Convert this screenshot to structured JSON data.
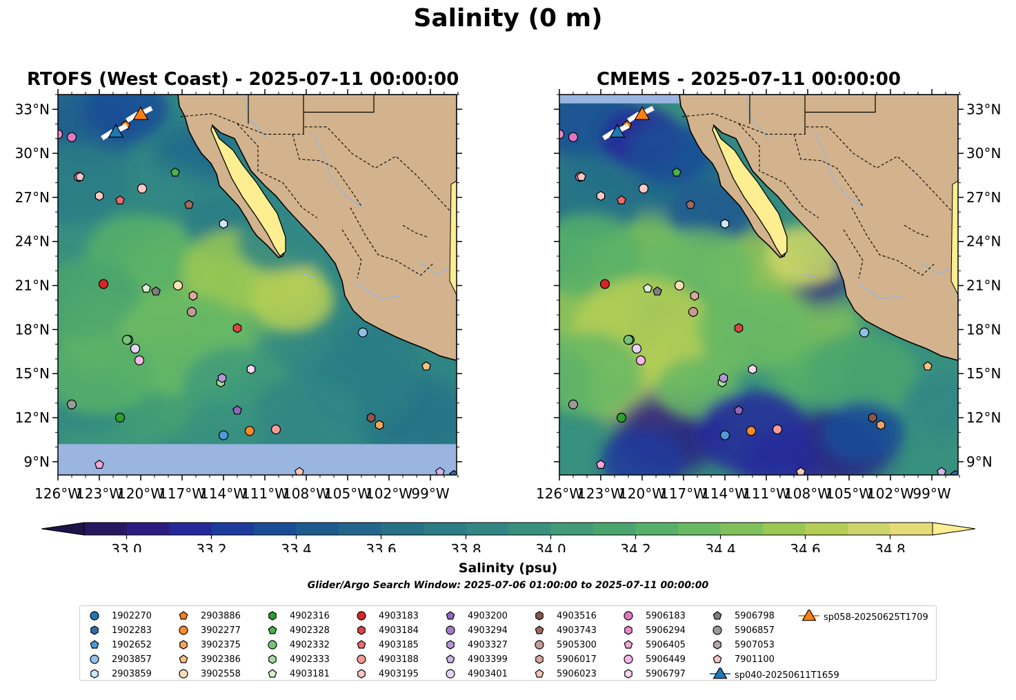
{
  "figure_title": "Salinity (0 m)",
  "chart_data": [
    {
      "type": "heatmap",
      "title": "RTOFS (West Coast) - 2025-07-11 00:00:00",
      "variable": "Salinity (psu)",
      "extent": {
        "lon": [
          -126,
          -97
        ],
        "lat": [
          8,
          34
        ]
      },
      "x_ticks": [
        "126°W",
        "123°W",
        "120°W",
        "117°W",
        "114°W",
        "111°W",
        "108°W",
        "105°W",
        "102°W",
        "99°W"
      ],
      "y_ticks": [
        "9°N",
        "12°N",
        "15°N",
        "18°N",
        "21°N",
        "24°N",
        "27°N",
        "30°N",
        "33°N"
      ],
      "y_axis_side": "left",
      "nodata_region": "south of ~10°N shown as missing (light blue)"
    },
    {
      "type": "heatmap",
      "title": "CMEMS - 2025-07-11 00:00:00",
      "variable": "Salinity (psu)",
      "extent": {
        "lon": [
          -126,
          -97
        ],
        "lat": [
          8,
          34
        ]
      },
      "x_ticks": [
        "126°W",
        "123°W",
        "120°W",
        "117°W",
        "114°W",
        "111°W",
        "108°W",
        "105°W",
        "102°W",
        "99°W"
      ],
      "y_ticks": [
        "9°N",
        "12°N",
        "15°N",
        "18°N",
        "21°N",
        "24°N",
        "27°N",
        "30°N",
        "33°N"
      ],
      "y_axis_side": "right"
    }
  ],
  "colorbar": {
    "label": "Salinity (psu)",
    "min": 32.9,
    "max": 34.9,
    "step": 0.1,
    "ticks": [
      "33.0",
      "33.2",
      "33.4",
      "33.6",
      "33.8",
      "34.0",
      "34.2",
      "34.4",
      "34.6",
      "34.8"
    ],
    "extend": "both",
    "colors": [
      "#27175f",
      "#2c1c82",
      "#26289a",
      "#1d3b9c",
      "#1a4d96",
      "#1d5b8f",
      "#22678b",
      "#277187",
      "#2c7c85",
      "#318784",
      "#38907f",
      "#409b79",
      "#4aa56f",
      "#57b069",
      "#68b964",
      "#80c15b",
      "#99c853",
      "#b4ce55",
      "#cdd569",
      "#e5dc77"
    ],
    "over_color": "#fdee91",
    "under_color": "#1c1447"
  },
  "search_window": "Glider/Argo Search Window: 2025-07-06 01:00:00 to 2025-07-11 00:00:00",
  "colors": {
    "land": "#d2b38d",
    "nodata": "#9ab5e0",
    "coast": "#000000",
    "river": "#9ab5d8"
  },
  "floats": [
    {
      "id": "1902270",
      "marker": "circle",
      "color": "#1f77b4",
      "lon": null,
      "lat": null
    },
    {
      "id": "1902283",
      "marker": "hexagon",
      "color": "#2f6fae",
      "lon": null,
      "lat": null
    },
    {
      "id": "1902652",
      "marker": "pentagon",
      "color": "#4d9ad8",
      "lon": null,
      "lat": null
    },
    {
      "id": "2903857",
      "marker": "circle",
      "color": "#8fc0e8",
      "lon": -103.9,
      "lat": 17.8
    },
    {
      "id": "2903859",
      "marker": "hexagon",
      "color": "#cfe6f8",
      "lon": -114.0,
      "lat": 25.2
    },
    {
      "id": "2903886",
      "marker": "pentagon",
      "color": "#ff7f0e",
      "lon": -121.1,
      "lat": 31.9
    },
    {
      "id": "3902277",
      "marker": "circle",
      "color": "#ff8a2a",
      "lon": -112.1,
      "lat": 11.1
    },
    {
      "id": "3902375",
      "marker": "hexagon",
      "color": "#f7a35c",
      "lon": -102.7,
      "lat": 11.5
    },
    {
      "id": "3902386",
      "marker": "pentagon",
      "color": "#fcc180",
      "lon": -99.3,
      "lat": 15.5
    },
    {
      "id": "3902558",
      "marker": "circle",
      "color": "#fde0b8",
      "lon": -117.3,
      "lat": 21.0
    },
    {
      "id": "4902316",
      "marker": "hexagon",
      "color": "#2ca02c",
      "lon": null,
      "lat": null
    },
    {
      "id": "4902328",
      "marker": "pentagon",
      "color": "#4bb34b",
      "lon": -117.5,
      "lat": 28.7
    },
    {
      "id": "4902332",
      "marker": "circle",
      "color": "#74c476",
      "lon": -120.9,
      "lat": 17.3
    },
    {
      "id": "4902333",
      "marker": "hexagon",
      "color": "#a6dba0",
      "lon": -114.2,
      "lat": 14.4
    },
    {
      "id": "4903181",
      "marker": "pentagon",
      "color": "#d9f0d3",
      "lon": -119.6,
      "lat": 20.8
    },
    {
      "id": "4903183",
      "marker": "circle",
      "color": "#d62728",
      "lon": -122.7,
      "lat": 21.1
    },
    {
      "id": "4903184",
      "marker": "hexagon",
      "color": "#e04444",
      "lon": -113.0,
      "lat": 18.1
    },
    {
      "id": "4903185",
      "marker": "pentagon",
      "color": "#f06a6a",
      "lon": -121.5,
      "lat": 26.8
    },
    {
      "id": "4903188",
      "marker": "circle",
      "color": "#f59a98",
      "lon": -110.2,
      "lat": 11.2
    },
    {
      "id": "4903195",
      "marker": "hexagon",
      "color": "#fcc9c4",
      "lon": -123.0,
      "lat": 27.1
    },
    {
      "id": "4903200",
      "marker": "pentagon",
      "color": "#9467bd",
      "lon": -113.0,
      "lat": 12.5
    },
    {
      "id": "4903294",
      "marker": "circle",
      "color": "#a27cca",
      "lon": null,
      "lat": null
    },
    {
      "id": "4903327",
      "marker": "hexagon",
      "color": "#b696d8",
      "lon": -114.1,
      "lat": 14.7
    },
    {
      "id": "4903399",
      "marker": "pentagon",
      "color": "#cdb6ea",
      "lon": -98.3,
      "lat": 8.3
    },
    {
      "id": "4903401",
      "marker": "circle",
      "color": "#e5d4f7",
      "lon": -120.4,
      "lat": 16.7
    },
    {
      "id": "4903516",
      "marker": "hexagon",
      "color": "#8c564b",
      "lon": -103.3,
      "lat": 12.0
    },
    {
      "id": "4903743",
      "marker": "pentagon",
      "color": "#a36a5f",
      "lon": -116.5,
      "lat": 26.5
    },
    {
      "id": "5905300",
      "marker": "circle",
      "color": "#c49c94",
      "lon": -116.3,
      "lat": 19.2
    },
    {
      "id": "5906017",
      "marker": "hexagon",
      "color": "#dba99f",
      "lon": -116.2,
      "lat": 20.3
    },
    {
      "id": "5906023",
      "marker": "pentagon",
      "color": "#f5c7b8",
      "lon": -108.5,
      "lat": 8.3
    },
    {
      "id": "5906183",
      "marker": "circle",
      "color": "#e377c2",
      "lon": -124.5,
      "lat": 28.4
    },
    {
      "id": "5906294",
      "marker": "hexagon",
      "color": "#f08ad0",
      "lon": null,
      "lat": null
    },
    {
      "id": "5906405",
      "marker": "pentagon",
      "color": "#f7a6de",
      "lon": -123.0,
      "lat": 8.8
    },
    {
      "id": "5906449",
      "marker": "circle",
      "color": "#f7b6e6",
      "lon": -120.1,
      "lat": 15.9
    },
    {
      "id": "5906797",
      "marker": "hexagon",
      "color": "#fbd7f1",
      "lon": -112.0,
      "lat": 15.3
    },
    {
      "id": "5906798",
      "marker": "pentagon",
      "color": "#7f7f7f",
      "lon": -118.9,
      "lat": 20.6
    },
    {
      "id": "5906857",
      "marker": "circle",
      "color": "#9a9a9a",
      "lon": -125.0,
      "lat": 12.9
    },
    {
      "id": "5907053",
      "marker": "hexagon",
      "color": "#b3a8a8",
      "lon": null,
      "lat": null
    },
    {
      "id": "7901100",
      "marker": "pentagon",
      "color": "#f7c5c5",
      "lon": -124.4,
      "lat": 28.4
    }
  ],
  "extra_points": [
    {
      "marker": "circle",
      "color": "#e377c2",
      "lon": -125.0,
      "lat": 31.1
    },
    {
      "marker": "circle",
      "color": "#f08ad0",
      "lon": -126.0,
      "lat": 31.3
    },
    {
      "marker": "circle",
      "color": "#fcc9c4",
      "lon": -119.9,
      "lat": 27.6
    },
    {
      "marker": "circle",
      "color": "#74c476",
      "lon": -121.0,
      "lat": 17.3
    },
    {
      "marker": "circle",
      "color": "#2ca02c",
      "lon": -121.5,
      "lat": 12.0
    },
    {
      "marker": "circle",
      "color": "#4d9ad8",
      "lon": -114.0,
      "lat": 10.8
    },
    {
      "marker": "pentagon",
      "color": "#2f6fae",
      "lon": -97.3,
      "lat": 8.1
    }
  ],
  "gliders": [
    {
      "id": "sp040-20250611T1659",
      "color": "#1f77b4",
      "lon": -121.8,
      "lat": 31.5
    },
    {
      "id": "sp058-20250625T1709",
      "color": "#ff7f0e",
      "lon": -120.0,
      "lat": 32.7
    }
  ]
}
